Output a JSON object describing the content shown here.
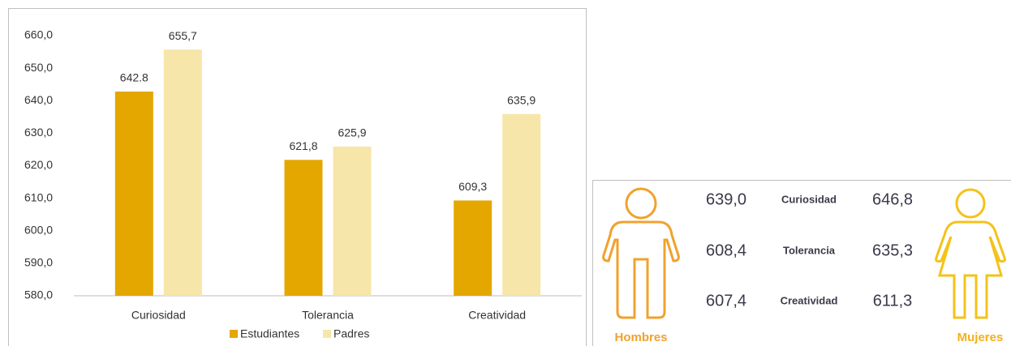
{
  "chart_data": {
    "type": "bar",
    "categories": [
      "Curiosidad",
      "Tolerancia",
      "Creatividad"
    ],
    "series": [
      {
        "name": "Estudiantes",
        "color": "#e4a700",
        "values": [
          642.8,
          621.8,
          609.3
        ],
        "value_labels": [
          "642.8",
          "621,8",
          "609,3"
        ]
      },
      {
        "name": "Padres",
        "color": "#f7e6a9",
        "values": [
          655.7,
          625.9,
          635.9
        ],
        "value_labels": [
          "655,7",
          "625,9",
          "635,9"
        ]
      }
    ],
    "ylim": [
      580,
      660
    ],
    "yticks": [
      {
        "value": 580,
        "label": "580,0"
      },
      {
        "value": 590,
        "label": "590,0"
      },
      {
        "value": 600,
        "label": "600,0"
      },
      {
        "value": 610,
        "label": "610,0"
      },
      {
        "value": 620,
        "label": "620,0"
      },
      {
        "value": 630,
        "label": "630,0"
      },
      {
        "value": 640,
        "label": "640,0"
      },
      {
        "value": 650,
        "label": "650,0"
      },
      {
        "value": 660,
        "label": "660,0"
      }
    ],
    "grid": false,
    "legend": "bottom"
  },
  "comparison": {
    "left_label": "Hombres",
    "right_label": "Mujeres",
    "rows": [
      {
        "left": "639,0",
        "label": "Curiosidad",
        "right": "646,8"
      },
      {
        "left": "608,4",
        "label": "Tolerancia",
        "right": "635,3"
      },
      {
        "left": "607,4",
        "label": "Creatividad",
        "right": "611,3"
      }
    ]
  }
}
